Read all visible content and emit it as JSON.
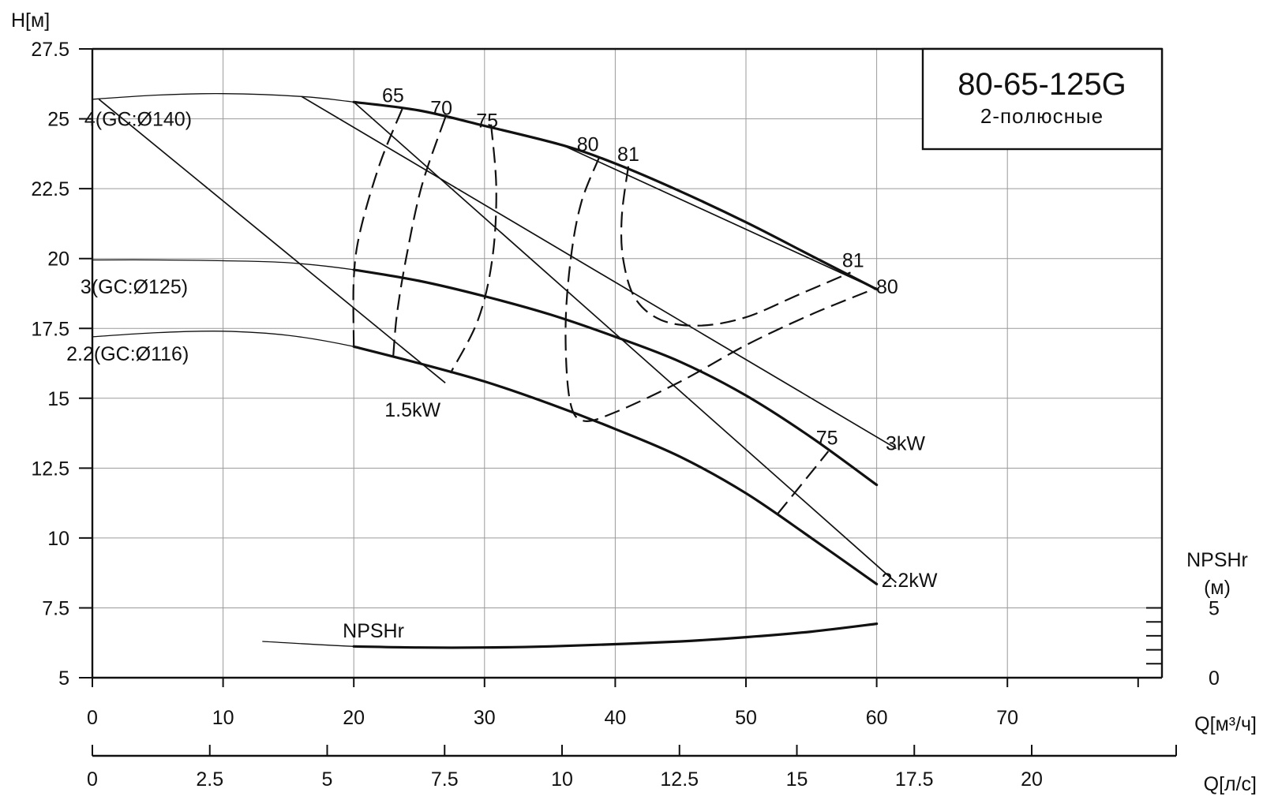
{
  "chart_data": {
    "type": "line",
    "title": "80-65-125G",
    "subtitle": "2-полюсные",
    "ylabel": "H[м]",
    "xlabel": "Q[м³/ч]",
    "x2label": "Q[л/с]",
    "y2label_line1": "NPSHr",
    "y2label_line2": "(м)",
    "xlim": [
      0,
      80
    ],
    "ylim": [
      5,
      27.5
    ],
    "grid": true,
    "x_ticks": [
      "0",
      "10",
      "20",
      "30",
      "40",
      "50",
      "60",
      "70"
    ],
    "x_tick_values": [
      0,
      10,
      20,
      30,
      40,
      50,
      60,
      70
    ],
    "y_ticks": [
      "27.5",
      "25",
      "22.5",
      "20",
      "17.5",
      "15",
      "12.5",
      "10",
      "7.5",
      "5"
    ],
    "y_tick_values": [
      27.5,
      25,
      22.5,
      20,
      17.5,
      15,
      12.5,
      10,
      7.5,
      5
    ],
    "x2_ticks": [
      "0",
      "2.5",
      "5",
      "7.5",
      "10",
      "12.5",
      "15",
      "17.5",
      "20"
    ],
    "x2_tick_values": [
      0,
      2.5,
      5,
      7.5,
      10,
      12.5,
      15,
      17.5,
      20
    ],
    "npsh_axis": {
      "range": [
        0,
        5
      ],
      "labeled_ticks": [
        "5",
        "0"
      ],
      "labeled_values": [
        5,
        0
      ],
      "minor_values": [
        1,
        2,
        3,
        4
      ]
    },
    "series": [
      {
        "name": "4(GC:Ø140)",
        "style": "head",
        "x": [
          0,
          5,
          10,
          16,
          20,
          25,
          30,
          36,
          40,
          45,
          50,
          55,
          60
        ],
        "y": [
          25.7,
          25.85,
          25.9,
          25.8,
          25.6,
          25.3,
          24.75,
          24.05,
          23.4,
          22.4,
          21.3,
          20.1,
          18.9
        ],
        "operating_from_x": 20
      },
      {
        "name": "3(GC:Ø125)",
        "style": "head",
        "x": [
          0,
          5,
          10,
          15,
          20,
          25,
          30,
          35,
          40,
          45,
          50,
          55,
          60
        ],
        "y": [
          19.95,
          19.95,
          19.92,
          19.85,
          19.6,
          19.2,
          18.65,
          18.0,
          17.2,
          16.3,
          15.1,
          13.6,
          11.9
        ],
        "operating_from_x": 20
      },
      {
        "name": "2.2(GC:Ø116)",
        "style": "head",
        "x": [
          0,
          5,
          10,
          15,
          20,
          25,
          30,
          35,
          40,
          45,
          50,
          55,
          60
        ],
        "y": [
          17.2,
          17.35,
          17.4,
          17.25,
          16.85,
          16.25,
          15.6,
          14.8,
          13.9,
          12.9,
          11.6,
          10.0,
          8.35
        ],
        "operating_from_x": 20
      },
      {
        "name": "NPSHr",
        "style": "npsh",
        "x": [
          13,
          20,
          25,
          30,
          35,
          40,
          45,
          50,
          55,
          60
        ],
        "y": [
          6.3,
          6.12,
          6.08,
          6.08,
          6.12,
          6.2,
          6.3,
          6.45,
          6.65,
          6.93
        ],
        "operating_from_x": 20
      }
    ],
    "power_lines": [
      {
        "label": "1.5kW",
        "x": [
          0.5,
          27.0
        ],
        "y": [
          25.7,
          15.55
        ]
      },
      {
        "label": "3kW",
        "x": [
          16.0,
          61.5
        ],
        "y": [
          25.8,
          13.2
        ]
      },
      {
        "label": "2.2kW",
        "x": [
          20.0,
          61.5
        ],
        "y": [
          25.6,
          8.4
        ]
      },
      {
        "label": "",
        "x": [
          36.0,
          60.0
        ],
        "y": [
          24.05,
          18.9
        ]
      }
    ],
    "efficiency_contours": [
      {
        "label": "65",
        "x": [
          23.7,
          22.0,
          20.5,
          20.0,
          20.0
        ],
        "y": [
          25.35,
          23.4,
          21.0,
          19.3,
          16.85
        ]
      },
      {
        "label": "70",
        "x": [
          27.0,
          25.2,
          24.0,
          23.3,
          23.0
        ],
        "y": [
          25.05,
          22.6,
          20.0,
          18.0,
          16.4
        ]
      },
      {
        "label": "75",
        "x": [
          30.5,
          30.9,
          30.6,
          29.5,
          27.4
        ],
        "y": [
          24.8,
          22.5,
          20.0,
          17.8,
          15.9
        ]
      },
      {
        "label": "80",
        "x": [
          38.8,
          37.4,
          36.6,
          36.2,
          36.5,
          37.5,
          40.0,
          45.0,
          50.0,
          55.0,
          60.0
        ],
        "y": [
          23.65,
          22.0,
          20.0,
          17.5,
          15.0,
          14.2,
          14.5,
          15.6,
          16.9,
          18.0,
          18.95
        ]
      },
      {
        "label": "81",
        "x": [
          41.0,
          40.5,
          40.6,
          41.5,
          43.5,
          46.5,
          50.0,
          54.0,
          58.0
        ],
        "y": [
          23.3,
          21.5,
          20.0,
          18.6,
          17.8,
          17.6,
          17.9,
          18.7,
          19.5
        ]
      },
      {
        "label": "75",
        "x": [
          52.4,
          56.3
        ],
        "y": [
          10.85,
          13.1
        ]
      }
    ],
    "annotations": [
      {
        "text": "4(GC:Ø140)",
        "x": 3.5,
        "y": 25
      },
      {
        "text": "3(GC:Ø125)",
        "x": 3.2,
        "y": 19.0
      },
      {
        "text": "2.2(GC:Ø116)",
        "x": 2.7,
        "y": 16.6
      },
      {
        "text": "1.5kW",
        "x": 24.5,
        "y": 14.6
      },
      {
        "text": "3kW",
        "x": 62.2,
        "y": 13.4
      },
      {
        "text": "2.2kW",
        "x": 62.5,
        "y": 8.5
      },
      {
        "text": "NPSHr",
        "x": 21.5,
        "y": 6.7
      },
      {
        "text": "65",
        "x": 23.0,
        "y": 25.85
      },
      {
        "text": "70",
        "x": 26.7,
        "y": 25.4
      },
      {
        "text": "75",
        "x": 30.2,
        "y": 24.95
      },
      {
        "text": "80",
        "x": 37.9,
        "y": 24.1
      },
      {
        "text": "81",
        "x": 41.0,
        "y": 23.75
      },
      {
        "text": "81",
        "x": 58.2,
        "y": 19.95
      },
      {
        "text": "80",
        "x": 60.8,
        "y": 19.0
      },
      {
        "text": "75",
        "x": 56.2,
        "y": 13.6
      }
    ]
  }
}
